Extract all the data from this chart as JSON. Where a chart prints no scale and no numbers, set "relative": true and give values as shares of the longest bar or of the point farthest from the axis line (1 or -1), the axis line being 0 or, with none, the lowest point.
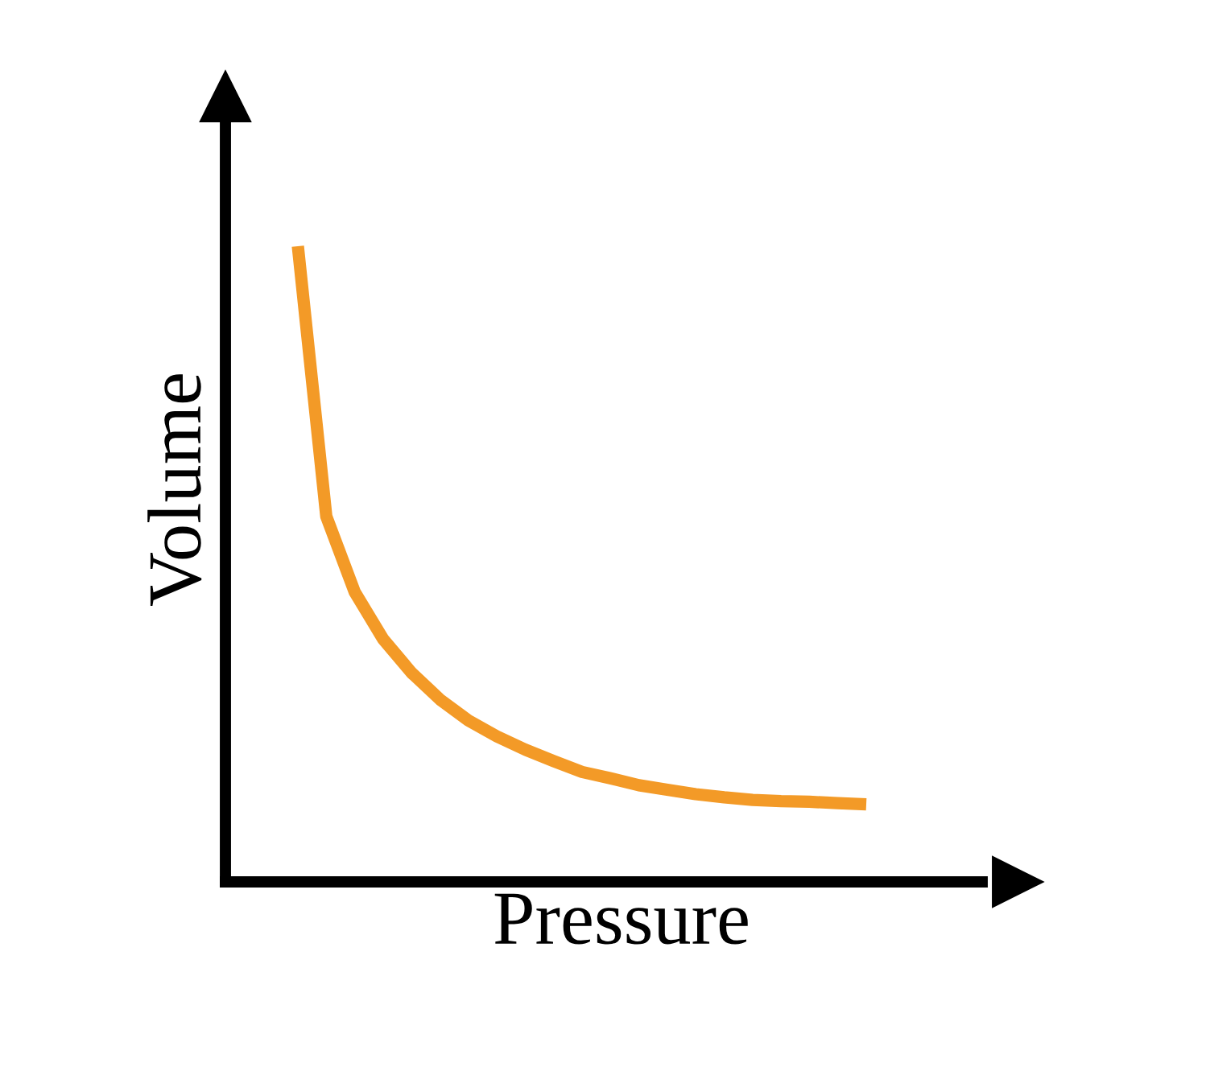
{
  "chart_data": {
    "type": "line",
    "relative": true,
    "xlabel": "Pressure",
    "ylabel": "Volume",
    "categories": [
      null,
      null,
      null,
      null,
      null,
      null,
      null,
      null,
      null,
      null,
      null,
      null,
      null,
      null,
      null,
      null,
      null,
      null,
      null,
      null,
      null
    ],
    "series": [
      {
        "color": "#f39a27",
        "values": [
          1.0,
          0.575,
          0.456,
          0.382,
          0.329,
          0.287,
          0.254,
          0.229,
          0.208,
          0.19,
          0.173,
          0.163,
          0.152,
          0.145,
          0.138,
          0.133,
          0.129,
          0.127,
          0.126,
          0.124,
          0.122
        ]
      }
    ],
    "marker": "none",
    "line_style": "solid"
  }
}
